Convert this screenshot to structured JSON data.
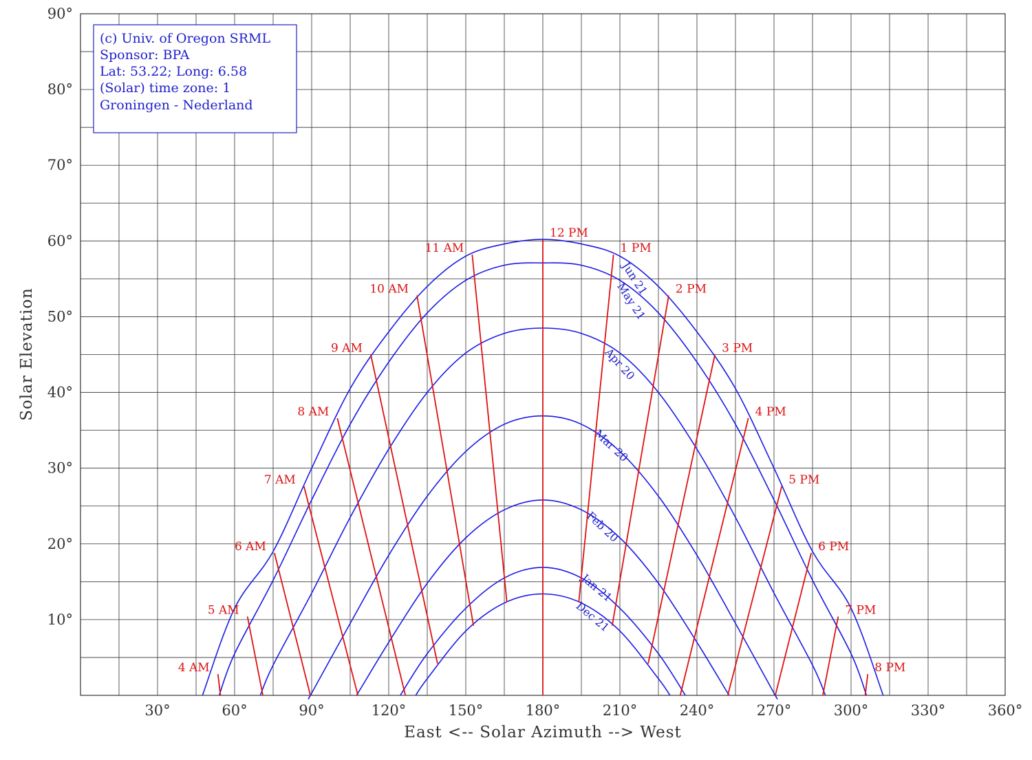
{
  "chart_data": {
    "type": "line",
    "xlabel": "East <-- Solar Azimuth --> West",
    "ylabel": "Solar Elevation",
    "xlim": [
      0,
      360
    ],
    "ylim": [
      0,
      90
    ],
    "x_ticks": [
      {
        "value": 30,
        "label": "30°"
      },
      {
        "value": 60,
        "label": "60°"
      },
      {
        "value": 90,
        "label": "90°"
      },
      {
        "value": 120,
        "label": "120°"
      },
      {
        "value": 150,
        "label": "150°"
      },
      {
        "value": 180,
        "label": "180°"
      },
      {
        "value": 210,
        "label": "210°"
      },
      {
        "value": 240,
        "label": "240°"
      },
      {
        "value": 270,
        "label": "270°"
      },
      {
        "value": 300,
        "label": "300°"
      },
      {
        "value": 330,
        "label": "330°"
      },
      {
        "value": 360,
        "label": "360°"
      }
    ],
    "y_ticks": [
      {
        "value": 10,
        "label": "10°"
      },
      {
        "value": 20,
        "label": "20°"
      },
      {
        "value": 30,
        "label": "30°"
      },
      {
        "value": 40,
        "label": "40°"
      },
      {
        "value": 50,
        "label": "50°"
      },
      {
        "value": 60,
        "label": "60°"
      },
      {
        "value": 70,
        "label": "70°"
      },
      {
        "value": 80,
        "label": "80°"
      },
      {
        "value": 90,
        "label": "90°"
      }
    ],
    "grid": true,
    "info_box": {
      "position": "top-left",
      "lines": [
        "(c) Univ. of Oregon SRML",
        "Sponsor: BPA",
        "Lat: 53.22; Long: 6.58",
        "(Solar) time zone: 1",
        "Groningen - Nederland"
      ]
    },
    "date_series": [
      {
        "name": "Jun 21",
        "label": "Jun 21",
        "peak": 60.2,
        "points": [
          [
            47.5,
            0
          ],
          [
            60,
            11.5
          ],
          [
            75,
            19
          ],
          [
            90,
            30
          ],
          [
            105,
            40.5
          ],
          [
            120,
            48
          ],
          [
            135,
            54
          ],
          [
            150,
            58
          ],
          [
            165,
            59.6
          ],
          [
            180,
            60.2
          ],
          [
            195,
            59.6
          ],
          [
            210,
            58
          ],
          [
            225,
            54
          ],
          [
            240,
            48
          ],
          [
            255,
            40.5
          ],
          [
            270,
            30
          ],
          [
            285,
            19
          ],
          [
            300,
            11.5
          ],
          [
            312.5,
            0
          ]
        ]
      },
      {
        "name": "May 21",
        "label": "May 21",
        "peak": 57.1,
        "points": [
          [
            54,
            0
          ],
          [
            60,
            5.5
          ],
          [
            75,
            15.2
          ],
          [
            90,
            25.8
          ],
          [
            105,
            35.8
          ],
          [
            120,
            44
          ],
          [
            135,
            50.5
          ],
          [
            150,
            54.8
          ],
          [
            165,
            56.8
          ],
          [
            180,
            57.1
          ],
          [
            195,
            56.8
          ],
          [
            210,
            54.8
          ],
          [
            225,
            50.5
          ],
          [
            240,
            44
          ],
          [
            255,
            35.8
          ],
          [
            270,
            25.8
          ],
          [
            285,
            15.2
          ],
          [
            300,
            5.5
          ],
          [
            306,
            0
          ]
        ]
      },
      {
        "name": "Apr 20",
        "label": "Apr 20",
        "peak": 48.5,
        "points": [
          [
            70,
            0
          ],
          [
            75,
            4
          ],
          [
            90,
            13.5
          ],
          [
            105,
            23.5
          ],
          [
            120,
            32.5
          ],
          [
            135,
            40
          ],
          [
            150,
            45.2
          ],
          [
            165,
            47.8
          ],
          [
            180,
            48.5
          ],
          [
            195,
            47.8
          ],
          [
            210,
            45.2
          ],
          [
            225,
            40
          ],
          [
            240,
            32.5
          ],
          [
            255,
            23.5
          ],
          [
            270,
            13.5
          ],
          [
            285,
            4
          ],
          [
            290,
            0
          ]
        ]
      },
      {
        "name": "Mar 20",
        "label": "Mar 20",
        "peak": 36.9,
        "points": [
          [
            89.5,
            0
          ],
          [
            90,
            0.3
          ],
          [
            105,
            9.5
          ],
          [
            120,
            18.5
          ],
          [
            135,
            26.3
          ],
          [
            150,
            32.2
          ],
          [
            165,
            35.8
          ],
          [
            180,
            36.9
          ],
          [
            195,
            35.8
          ],
          [
            210,
            32.2
          ],
          [
            225,
            26.3
          ],
          [
            240,
            18.5
          ],
          [
            255,
            9.5
          ],
          [
            270,
            0.3
          ],
          [
            270.5,
            0
          ]
        ]
      },
      {
        "name": "Feb 20",
        "label": "Feb 20",
        "peak": 25.8,
        "points": [
          [
            107.5,
            0
          ],
          [
            120,
            7
          ],
          [
            135,
            14.8
          ],
          [
            150,
            20.8
          ],
          [
            165,
            24.5
          ],
          [
            180,
            25.8
          ],
          [
            195,
            24.5
          ],
          [
            210,
            20.8
          ],
          [
            225,
            14.8
          ],
          [
            240,
            7
          ],
          [
            252.5,
            0
          ]
        ]
      },
      {
        "name": "Jan 21",
        "label": "Jan 21",
        "peak": 16.9,
        "points": [
          [
            124.5,
            0
          ],
          [
            135,
            5.5
          ],
          [
            150,
            11.5
          ],
          [
            165,
            15.5
          ],
          [
            180,
            16.9
          ],
          [
            195,
            15.5
          ],
          [
            210,
            11.5
          ],
          [
            225,
            5.5
          ],
          [
            235.5,
            0
          ]
        ]
      },
      {
        "name": "Dec 21",
        "label": "Dec 21",
        "peak": 13.4,
        "points": [
          [
            130.5,
            0
          ],
          [
            135,
            2.2
          ],
          [
            150,
            8.5
          ],
          [
            165,
            12.2
          ],
          [
            180,
            13.4
          ],
          [
            195,
            12.2
          ],
          [
            210,
            8.5
          ],
          [
            225,
            2.2
          ],
          [
            229.5,
            0
          ]
        ]
      }
    ],
    "hour_series": [
      {
        "label": "4 AM",
        "points": [
          [
            53.5,
            2.8
          ],
          [
            54.5,
            0
          ]
        ]
      },
      {
        "label": "5 AM",
        "points": [
          [
            65,
            10.4
          ],
          [
            71,
            0
          ]
        ]
      },
      {
        "label": "6 AM",
        "points": [
          [
            75.5,
            18.8
          ],
          [
            89.5,
            0
          ]
        ]
      },
      {
        "label": "7 AM",
        "points": [
          [
            87,
            27.6
          ],
          [
            108,
            0
          ]
        ]
      },
      {
        "label": "8 AM",
        "points": [
          [
            100,
            36.6
          ],
          [
            126.5,
            0
          ]
        ]
      },
      {
        "label": "9 AM",
        "points": [
          [
            113,
            45
          ],
          [
            139,
            4.2
          ]
        ]
      },
      {
        "label": "10 AM",
        "points": [
          [
            131,
            52.8
          ],
          [
            153,
            9.2
          ]
        ]
      },
      {
        "label": "11 AM",
        "points": [
          [
            152.5,
            58.2
          ],
          [
            166,
            12.3
          ]
        ]
      },
      {
        "label": "12 PM",
        "points": [
          [
            180,
            60.2
          ],
          [
            180,
            0
          ]
        ]
      },
      {
        "label": "1 PM",
        "points": [
          [
            207.5,
            58.2
          ],
          [
            194,
            12.3
          ]
        ]
      },
      {
        "label": "2 PM",
        "points": [
          [
            229,
            52.8
          ],
          [
            207,
            9.2
          ]
        ]
      },
      {
        "label": "3 PM",
        "points": [
          [
            247,
            45
          ],
          [
            221,
            4.2
          ]
        ]
      },
      {
        "label": "4 PM",
        "points": [
          [
            260,
            36.6
          ],
          [
            233.5,
            0
          ]
        ]
      },
      {
        "label": "5 PM",
        "points": [
          [
            273,
            27.6
          ],
          [
            252,
            0
          ]
        ]
      },
      {
        "label": "6 PM",
        "points": [
          [
            284.5,
            18.8
          ],
          [
            270.5,
            0
          ]
        ]
      },
      {
        "label": "7 PM",
        "points": [
          [
            295,
            10.4
          ],
          [
            289,
            0
          ]
        ]
      },
      {
        "label": "8 PM",
        "points": [
          [
            306.5,
            2.8
          ],
          [
            305.5,
            0
          ]
        ]
      }
    ],
    "colors": {
      "date_lines": "#1a1ae6",
      "hour_lines": "#e01010",
      "text_blue": "#2020cc",
      "text_red": "#dd1111",
      "grid": "#333333"
    }
  }
}
